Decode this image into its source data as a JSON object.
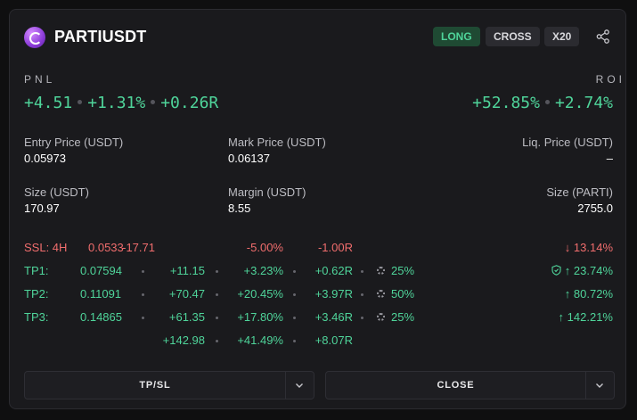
{
  "header": {
    "symbol": "PARTIUSDT",
    "side": "LONG",
    "margin_mode": "CROSS",
    "leverage": "X20",
    "share_icon": "share-icon"
  },
  "pnl": {
    "label": "PNL",
    "value": "+4.51",
    "percent": "+1.31%",
    "r_value": "+0.26R"
  },
  "roi": {
    "label": "ROI",
    "value": "+52.85%",
    "secondary": "+2.74%"
  },
  "fields": {
    "entry_price_label": "Entry Price (USDT)",
    "entry_price": "0.05973",
    "mark_price_label": "Mark Price (USDT)",
    "mark_price": "0.06137",
    "liq_price_label": "Liq. Price (USDT)",
    "liq_price": "–",
    "size_usdt_label": "Size (USDT)",
    "size_usdt": "170.97",
    "margin_label": "Margin (USDT)",
    "margin": "8.55",
    "size_base_label": "Size (PARTI)",
    "size_base": "2755.0"
  },
  "targets": {
    "ssl": {
      "label": "SSL: 4H",
      "price": "0.0533",
      "pnl": "-17.71",
      "pct": "-5.00%",
      "r": "-1.00R",
      "move": "13.14%"
    },
    "tps": [
      {
        "label": "TP1:",
        "price": "0.07594",
        "pnl": "+11.15",
        "pct": "+3.23%",
        "r": "+0.62R",
        "alloc": "25%",
        "move": "23.74%",
        "shield": true
      },
      {
        "label": "TP2:",
        "price": "0.11091",
        "pnl": "+70.47",
        "pct": "+20.45%",
        "r": "+3.97R",
        "alloc": "50%",
        "move": "80.72%",
        "shield": false
      },
      {
        "label": "TP3:",
        "price": "0.14865",
        "pnl": "+61.35",
        "pct": "+17.80%",
        "r": "+3.46R",
        "alloc": "25%",
        "move": "142.21%",
        "shield": false
      }
    ],
    "totals": {
      "pnl": "+142.98",
      "pct": "+41.49%",
      "r": "+8.07R"
    }
  },
  "buttons": {
    "tpsl_label": "TP/SL",
    "close_label": "CLOSE"
  },
  "colors": {
    "green": "#4fd49a",
    "red": "#f06d6d",
    "long_badge_bg": "#1f4a33"
  }
}
